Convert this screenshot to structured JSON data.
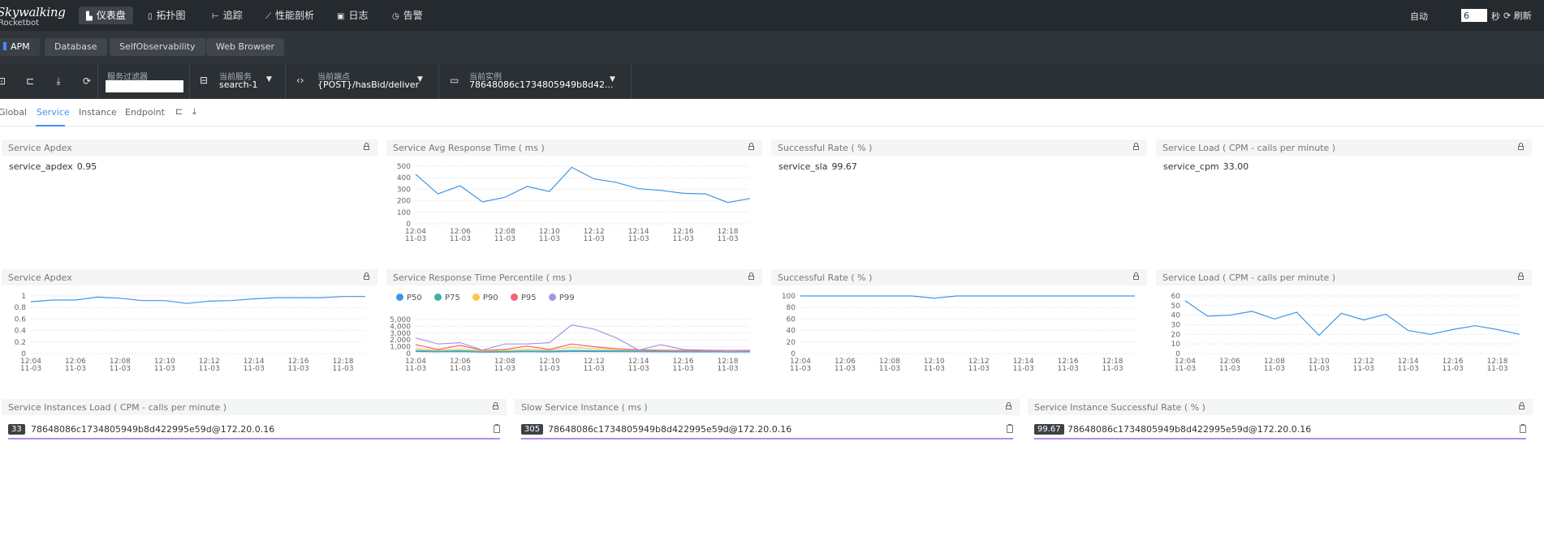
{
  "brand": {
    "name": "Skywalking",
    "sub": "Rocketbot"
  },
  "nav": [
    {
      "label": "仪表盘",
      "icon": "dashboard-icon",
      "active": true
    },
    {
      "label": "拓扑图",
      "icon": "topology-icon"
    },
    {
      "label": "追踪",
      "icon": "trace-icon"
    },
    {
      "label": "性能剖析",
      "icon": "profile-icon"
    },
    {
      "label": "日志",
      "icon": "log-icon"
    },
    {
      "label": "告警",
      "icon": "alarm-icon"
    }
  ],
  "auto_refresh": {
    "label": "自动",
    "value": "6",
    "unit": "秒",
    "refresh": "刷新"
  },
  "project_tabs": [
    "APM",
    "Database",
    "SelfObservability",
    "Web Browser"
  ],
  "toolbar": {
    "filter": {
      "label": "服务过滤器",
      "value": ""
    },
    "service": {
      "label": "当前服务",
      "value": "search-1"
    },
    "endpoint": {
      "label": "当前端点",
      "value": "{POST}/hasBid/deliver"
    },
    "instance": {
      "label": "当前实例",
      "value": "78648086c1734805949b8d42..."
    }
  },
  "sub_tabs": [
    "Global",
    "Service",
    "Instance",
    "Endpoint"
  ],
  "panels": {
    "apdex_value": {
      "title": "Service Apdex",
      "key": "service_apdex",
      "value": "0.95"
    },
    "avg_resp": {
      "title": "Service Avg Response Time ( ms )"
    },
    "sla_value": {
      "title": "Successful Rate ( % )",
      "key": "service_sla",
      "value": "99.67"
    },
    "cpm_value": {
      "title": "Service Load ( CPM - calls per minute )",
      "key": "service_cpm",
      "value": "33.00"
    },
    "apdex_chart": {
      "title": "Service Apdex"
    },
    "percentile": {
      "title": "Service Response Time Percentile ( ms )"
    },
    "sla_chart": {
      "title": "Successful Rate ( % )"
    },
    "cpm_chart": {
      "title": "Service Load ( CPM - calls per minute )"
    },
    "inst_load": {
      "title": "Service Instances Load ( CPM - calls per minute )",
      "badge": "33",
      "name": "78648086c1734805949b8d422995e59d@172.20.0.16"
    },
    "slow_inst": {
      "title": "Slow Service Instance ( ms )",
      "badge": "305",
      "name": "78648086c1734805949b8d422995e59d@172.20.0.16"
    },
    "inst_sla": {
      "title": "Service Instance Successful Rate ( % )",
      "badge": "99.67",
      "name": "78648086c1734805949b8d422995e59d@172.20.0.16"
    }
  },
  "colors": {
    "line": "#3f96e3",
    "accent": "#3d92f5",
    "p50": "#3f96e3",
    "p75": "#3fb1a3",
    "p90": "#f9c749",
    "p95": "#f56271",
    "p99": "#a495e8"
  },
  "chart_data": [
    {
      "type": "line",
      "panel": "Service Avg Response Time ( ms )",
      "x": [
        "12:04",
        "12:05",
        "12:06",
        "12:07",
        "12:08",
        "12:09",
        "12:10",
        "12:11",
        "12:12",
        "12:13",
        "12:14",
        "12:15",
        "12:16",
        "12:17",
        "12:18",
        "12:19"
      ],
      "x_ticks": [
        "12:04",
        "12:06",
        "12:08",
        "12:10",
        "12:12",
        "12:14",
        "12:16",
        "12:18"
      ],
      "x_sub": "11-03",
      "values": [
        430,
        260,
        330,
        190,
        230,
        325,
        280,
        490,
        390,
        360,
        305,
        290,
        265,
        260,
        185,
        220
      ],
      "ylim": [
        0,
        500
      ],
      "y_ticks": [
        "0",
        "100",
        "200",
        "300",
        "400",
        "500"
      ]
    },
    {
      "type": "line",
      "panel": "Service Apdex",
      "x": [
        "12:04",
        "12:05",
        "12:06",
        "12:07",
        "12:08",
        "12:09",
        "12:10",
        "12:11",
        "12:12",
        "12:13",
        "12:14",
        "12:15",
        "12:16",
        "12:17",
        "12:18",
        "12:19"
      ],
      "x_ticks": [
        "12:04",
        "12:06",
        "12:08",
        "12:10",
        "12:12",
        "12:14",
        "12:16",
        "12:18"
      ],
      "x_sub": "11-03",
      "values": [
        0.9,
        0.93,
        0.93,
        0.98,
        0.96,
        0.92,
        0.92,
        0.87,
        0.91,
        0.92,
        0.95,
        0.97,
        0.97,
        0.97,
        0.99,
        0.99
      ],
      "ylim": [
        0,
        1
      ],
      "y_ticks": [
        "0",
        "0.2",
        "0.4",
        "0.6",
        "0.8",
        "1"
      ]
    },
    {
      "type": "line",
      "panel": "Service Response Time Percentile ( ms )",
      "x": [
        "12:04",
        "12:05",
        "12:06",
        "12:07",
        "12:08",
        "12:09",
        "12:10",
        "12:11",
        "12:12",
        "12:13",
        "12:14",
        "12:15",
        "12:16",
        "12:17",
        "12:18",
        "12:19"
      ],
      "x_ticks": [
        "12:04",
        "12:06",
        "12:08",
        "12:10",
        "12:12",
        "12:14",
        "12:16",
        "12:18"
      ],
      "x_sub": "11-03",
      "ylim": [
        0,
        5000
      ],
      "y_ticks": [
        "0",
        "1,000",
        "2,000",
        "3,000",
        "4,000",
        "5,000"
      ],
      "series": [
        {
          "name": "P50",
          "values": [
            300,
            250,
            280,
            200,
            230,
            260,
            240,
            300,
            280,
            270,
            260,
            250,
            240,
            240,
            230,
            240
          ]
        },
        {
          "name": "P75",
          "values": [
            450,
            350,
            420,
            280,
            320,
            380,
            340,
            480,
            420,
            400,
            380,
            360,
            340,
            330,
            300,
            320
          ]
        },
        {
          "name": "P90",
          "values": [
            700,
            500,
            650,
            380,
            450,
            600,
            500,
            900,
            700,
            600,
            500,
            450,
            420,
            400,
            350,
            380
          ]
        },
        {
          "name": "P95",
          "values": [
            1300,
            600,
            1200,
            450,
            600,
            1100,
            600,
            1400,
            1000,
            700,
            550,
            500,
            450,
            420,
            380,
            400
          ]
        },
        {
          "name": "P99",
          "values": [
            2300,
            1400,
            1600,
            500,
            1400,
            1400,
            1600,
            4200,
            3600,
            2300,
            500,
            1300,
            600,
            500,
            450,
            480
          ]
        }
      ]
    },
    {
      "type": "line",
      "panel": "Successful Rate ( % )",
      "x": [
        "12:04",
        "12:05",
        "12:06",
        "12:07",
        "12:08",
        "12:09",
        "12:10",
        "12:11",
        "12:12",
        "12:13",
        "12:14",
        "12:15",
        "12:16",
        "12:17",
        "12:18",
        "12:19"
      ],
      "x_ticks": [
        "12:04",
        "12:06",
        "12:08",
        "12:10",
        "12:12",
        "12:14",
        "12:16",
        "12:18"
      ],
      "x_sub": "11-03",
      "values": [
        100,
        100,
        100,
        100,
        100,
        100,
        96,
        100,
        100,
        100,
        100,
        100,
        100,
        100,
        100,
        100
      ],
      "ylim": [
        0,
        100
      ],
      "y_ticks": [
        "0",
        "20",
        "40",
        "60",
        "80",
        "100"
      ]
    },
    {
      "type": "line",
      "panel": "Service Load ( CPM - calls per minute )",
      "x": [
        "12:04",
        "12:05",
        "12:06",
        "12:07",
        "12:08",
        "12:09",
        "12:10",
        "12:11",
        "12:12",
        "12:13",
        "12:14",
        "12:15",
        "12:16",
        "12:17",
        "12:18",
        "12:19"
      ],
      "x_ticks": [
        "12:04",
        "12:06",
        "12:08",
        "12:10",
        "12:12",
        "12:14",
        "12:16",
        "12:18"
      ],
      "x_sub": "11-03",
      "values": [
        55,
        39,
        40,
        44,
        36,
        43,
        19,
        42,
        35,
        41,
        24,
        20,
        25,
        29,
        25,
        20
      ],
      "ylim": [
        0,
        60
      ],
      "y_ticks": [
        "0",
        "10",
        "20",
        "30",
        "40",
        "50",
        "60"
      ]
    }
  ]
}
